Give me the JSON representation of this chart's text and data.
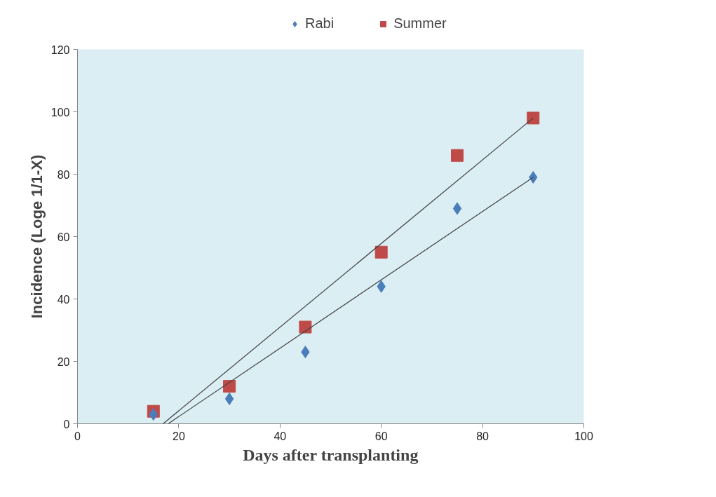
{
  "chart_data": {
    "type": "scatter",
    "xlabel": "Days after transplanting",
    "ylabel": "Incidence (Loge 1/1-X)",
    "x": [
      15,
      30,
      45,
      60,
      75,
      90
    ],
    "series": [
      {
        "name": "Rabi",
        "color": "#4a7ebb",
        "marker": "diamond",
        "values": [
          3,
          8,
          23,
          44,
          69,
          79
        ]
      },
      {
        "name": "Summer",
        "color": "#be4b48",
        "marker": "square",
        "values": [
          4,
          12,
          31,
          55,
          86,
          98
        ]
      },
      {
        "type": "line",
        "color": "#404040",
        "x": [
          17.9,
          90
        ],
        "values": [
          0,
          79
        ]
      },
      {
        "type": "line",
        "color": "#404040",
        "x": [
          16.9,
          90
        ],
        "values": [
          0,
          98
        ]
      }
    ],
    "xlim": [
      0,
      100
    ],
    "xticks": [
      0,
      20,
      40,
      60,
      80,
      100
    ],
    "ylim": [
      0,
      120
    ],
    "yticks": [
      0,
      20,
      40,
      60,
      80,
      100,
      120
    ],
    "grid": false,
    "legend": "top"
  }
}
